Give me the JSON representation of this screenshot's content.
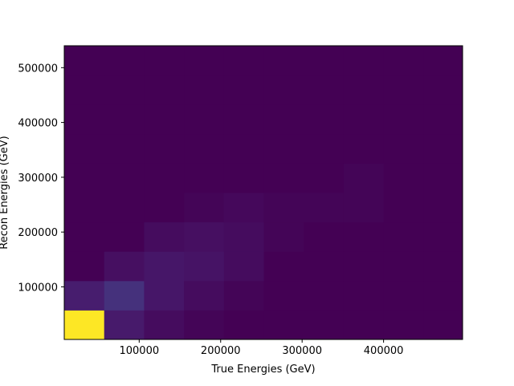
{
  "chart_data": {
    "type": "heatmap",
    "title": "",
    "xlabel": "True Energies (GeV)",
    "ylabel": "Recon Energies (GeV)",
    "colormap": "viridis",
    "x_range": [
      8000,
      497000
    ],
    "y_range": [
      4000,
      540000
    ],
    "x_ticks": [
      100000,
      200000,
      300000,
      400000
    ],
    "y_ticks": [
      100000,
      200000,
      300000,
      400000,
      500000
    ],
    "x_bin_edges": [
      8000,
      57000,
      106000,
      155000,
      204000,
      253000,
      302000,
      351000,
      400000,
      449000,
      497000
    ],
    "y_bin_edges": [
      4000,
      57600,
      111200,
      164800,
      218400,
      272000,
      325600,
      379200,
      432800,
      486400,
      540000
    ],
    "values_note": "rows ordered from lowest to highest recon-energy bin; columns from lowest to highest true-energy bin; values normalized to max = 1",
    "values": [
      [
        1.0,
        0.07,
        0.03,
        0.01,
        0.0,
        0.0,
        0.0,
        0.0,
        0.0,
        0.0
      ],
      [
        0.08,
        0.14,
        0.06,
        0.03,
        0.01,
        0.0,
        0.0,
        0.0,
        0.0,
        0.0
      ],
      [
        0.0,
        0.04,
        0.06,
        0.05,
        0.03,
        0.0,
        0.0,
        0.0,
        0.0,
        0.0
      ],
      [
        0.0,
        0.0,
        0.03,
        0.04,
        0.03,
        0.01,
        0.0,
        0.0,
        0.0,
        0.0
      ],
      [
        0.0,
        0.0,
        0.0,
        0.01,
        0.02,
        0.01,
        0.01,
        0.01,
        0.0,
        0.0
      ],
      [
        0.0,
        0.0,
        0.0,
        0.0,
        0.0,
        0.0,
        0.0,
        0.01,
        0.0,
        0.0
      ],
      [
        0.0,
        0.0,
        0.0,
        0.0,
        0.0,
        0.0,
        0.0,
        0.0,
        0.0,
        0.0
      ],
      [
        0.0,
        0.0,
        0.0,
        0.0,
        0.0,
        0.0,
        0.0,
        0.0,
        0.0,
        0.0
      ],
      [
        0.0,
        0.0,
        0.0,
        0.0,
        0.0,
        0.0,
        0.0,
        0.0,
        0.0,
        0.0
      ],
      [
        0.0,
        0.0,
        0.0,
        0.0,
        0.0,
        0.0,
        0.0,
        0.0,
        0.0,
        0.0
      ]
    ],
    "tick_labels": {
      "x": [
        "100000",
        "200000",
        "300000",
        "400000"
      ],
      "y": [
        "100000",
        "200000",
        "300000",
        "400000",
        "500000"
      ]
    },
    "grid": false,
    "legend": "none"
  }
}
